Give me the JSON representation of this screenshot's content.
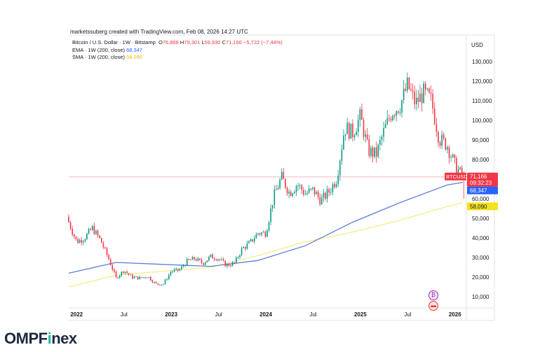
{
  "attribution": "marketssuberg created with TradingView.com, Feb 08, 2026 14:27 UTC",
  "legend": {
    "symbol_line": "Bitcoin / U.S. Dollar · 1W · Bitstamp",
    "ohlc": {
      "o_key": "O",
      "o": "76,888",
      "h_key": "H",
      "h": "79,301",
      "l_key": "L",
      "l": "59,930",
      "c_key": "C",
      "c": "71,166",
      "change": "−5,722 (−7.44%)"
    },
    "ema_label": "EMA · 1W (200, close)",
    "ema_value": "68,347",
    "sma_label": "SMA · 1W (200, close)",
    "sma_value": "58,090"
  },
  "currency": "USD",
  "colors": {
    "up": "#089981",
    "down": "#f23645",
    "ema": "#5b7fd6",
    "sma": "#f5ec8a",
    "price_line": "#f7b9c0",
    "sma_tag": "#f5e11d",
    "ema_tag": "#2962ff"
  },
  "logo": {
    "prefix": "OMPF",
    "accent": "i",
    "suffix": "nex"
  },
  "chart_data": {
    "type": "candlestick",
    "title": "Bitcoin / U.S. Dollar · 1W · Bitstamp",
    "x_ticks": [
      "2022",
      "Jul",
      "2023",
      "Jul",
      "2024",
      "Jul",
      "2025",
      "Jul",
      "2026"
    ],
    "y_ticks": [
      "130,000",
      "120,000",
      "110,000",
      "100,000",
      "90,000",
      "80,000",
      "60,000",
      "50,000",
      "40,000",
      "30,000",
      "20,000",
      "10,000"
    ],
    "ylim": [
      5000,
      140000
    ],
    "start_date": "2021-12",
    "end_date": "2026-02",
    "price_path": [
      [
        "2021-12",
        48000
      ],
      [
        "2022-01",
        38000
      ],
      [
        "2022-02",
        40000
      ],
      [
        "2022-03",
        45000
      ],
      [
        "2022-04",
        39000
      ],
      [
        "2022-05",
        30000
      ],
      [
        "2022-06",
        19500
      ],
      [
        "2022-07",
        23500
      ],
      [
        "2022-08",
        20000
      ],
      [
        "2022-09",
        19500
      ],
      [
        "2022-10",
        20500
      ],
      [
        "2022-11",
        16500
      ],
      [
        "2022-12",
        16500
      ],
      [
        "2023-01",
        23000
      ],
      [
        "2023-02",
        23500
      ],
      [
        "2023-03",
        28000
      ],
      [
        "2023-04",
        29500
      ],
      [
        "2023-05",
        27000
      ],
      [
        "2023-06",
        30500
      ],
      [
        "2023-07",
        29500
      ],
      [
        "2023-08",
        26000
      ],
      [
        "2023-09",
        27000
      ],
      [
        "2023-10",
        34500
      ],
      [
        "2023-11",
        37500
      ],
      [
        "2023-12",
        42500
      ],
      [
        "2024-01",
        42500
      ],
      [
        "2024-02",
        61000
      ],
      [
        "2024-03",
        71000
      ],
      [
        "2024-04",
        63000
      ],
      [
        "2024-05",
        67500
      ],
      [
        "2024-06",
        62500
      ],
      [
        "2024-07",
        64500
      ],
      [
        "2024-08",
        59000
      ],
      [
        "2024-09",
        63500
      ],
      [
        "2024-10",
        70500
      ],
      [
        "2024-11",
        96500
      ],
      [
        "2024-12",
        93500
      ],
      [
        "2025-01",
        102000
      ],
      [
        "2025-02",
        84500
      ],
      [
        "2025-03",
        82500
      ],
      [
        "2025-04",
        94500
      ],
      [
        "2025-05",
        104500
      ],
      [
        "2025-06",
        107500
      ],
      [
        "2025-07",
        118000
      ],
      [
        "2025-08",
        108500
      ],
      [
        "2025-09",
        114000
      ],
      [
        "2025-10",
        110000
      ],
      [
        "2025-11",
        90500
      ],
      [
        "2025-12",
        87500
      ],
      [
        "2026-01",
        77000
      ],
      [
        "2026-02",
        71166
      ]
    ],
    "ema_200": [
      [
        "2021-12",
        22000
      ],
      [
        "2022-06",
        27500
      ],
      [
        "2022-12",
        26500
      ],
      [
        "2023-06",
        25500
      ],
      [
        "2023-12",
        28500
      ],
      [
        "2024-06",
        36000
      ],
      [
        "2024-12",
        48000
      ],
      [
        "2025-06",
        58000
      ],
      [
        "2025-12",
        67000
      ],
      [
        "2026-02",
        68347
      ]
    ],
    "sma_200": [
      [
        "2021-12",
        15000
      ],
      [
        "2022-06",
        21000
      ],
      [
        "2022-12",
        23000
      ],
      [
        "2023-06",
        25000
      ],
      [
        "2023-12",
        31000
      ],
      [
        "2024-06",
        38000
      ],
      [
        "2024-12",
        43000
      ],
      [
        "2025-06",
        49000
      ],
      [
        "2025-12",
        56000
      ],
      [
        "2026-02",
        58090
      ]
    ],
    "last_price": {
      "symbol": "BTCUSD",
      "value": "71,166",
      "countdown": "09:32:23",
      "y": 71166
    },
    "ema_tag": {
      "value": "68,347",
      "y": 68347
    },
    "sma_tag": {
      "value": "58,090",
      "y": 58090
    }
  }
}
